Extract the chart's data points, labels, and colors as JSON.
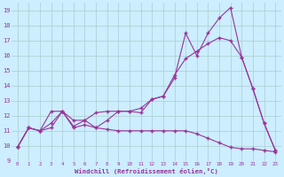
{
  "xlabel": "Windchill (Refroidissement éolien,°C)",
  "bg_color": "#cceeff",
  "grid_color": "#aacccc",
  "line_color": "#993399",
  "xlim": [
    -0.5,
    23.5
  ],
  "ylim": [
    9,
    19.5
  ],
  "xticks": [
    0,
    1,
    2,
    3,
    4,
    5,
    6,
    7,
    8,
    9,
    10,
    11,
    12,
    13,
    14,
    15,
    16,
    17,
    18,
    19,
    20,
    21,
    22,
    23
  ],
  "yticks": [
    9,
    10,
    11,
    12,
    13,
    14,
    15,
    16,
    17,
    18,
    19
  ],
  "line1_x": [
    0,
    1,
    2,
    3,
    4,
    5,
    6,
    7,
    8,
    9,
    10,
    11,
    12,
    13,
    14,
    15,
    16,
    17,
    18,
    19,
    20,
    21,
    22,
    23
  ],
  "line1_y": [
    9.9,
    11.2,
    11.0,
    12.3,
    12.3,
    11.7,
    11.7,
    11.2,
    11.7,
    12.3,
    12.3,
    12.2,
    13.1,
    13.3,
    14.7,
    15.8,
    16.3,
    16.8,
    17.2,
    17.0,
    15.9,
    13.8,
    11.5,
    9.7
  ],
  "line2_x": [
    0,
    1,
    2,
    3,
    4,
    5,
    6,
    7,
    8,
    9,
    10,
    11,
    12,
    13,
    14,
    15,
    16,
    17,
    18,
    19,
    20,
    21,
    22,
    23
  ],
  "line2_y": [
    9.9,
    11.2,
    11.0,
    11.5,
    12.3,
    11.3,
    11.7,
    12.2,
    12.3,
    12.3,
    12.3,
    12.5,
    13.1,
    13.3,
    14.5,
    17.5,
    16.0,
    17.5,
    18.5,
    19.2,
    15.9,
    13.8,
    11.5,
    9.7
  ],
  "line3_x": [
    0,
    1,
    2,
    3,
    4,
    5,
    6,
    7,
    8,
    9,
    10,
    11,
    12,
    13,
    14,
    15,
    16,
    17,
    18,
    19,
    20,
    21,
    22,
    23
  ],
  "line3_y": [
    9.9,
    11.2,
    11.0,
    11.2,
    12.3,
    11.2,
    11.4,
    11.2,
    11.1,
    11.0,
    11.0,
    11.0,
    11.0,
    11.0,
    11.0,
    11.0,
    10.8,
    10.5,
    10.2,
    9.9,
    9.8,
    9.8,
    9.7,
    9.6
  ]
}
